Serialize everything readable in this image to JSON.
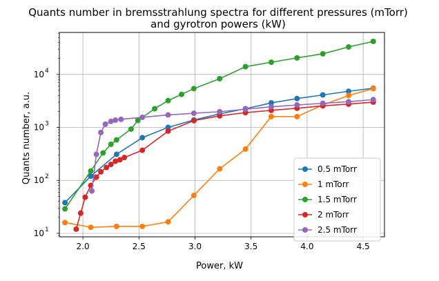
{
  "chart_data": {
    "type": "line",
    "title": [
      "Quants number in bremsstrahlung spectra for different pressures (mTorr)",
      "and gyrotron powers (kW)"
    ],
    "xlabel": "Power, kW",
    "ylabel": "Quants number, a.u.",
    "xlim": [
      1.79,
      4.69
    ],
    "ylim": [
      8.6,
      62000
    ],
    "yscale": "log",
    "grid": true,
    "legend_position": "lower-right",
    "x_ticks": [
      {
        "value": 2.0,
        "label": "2.0"
      },
      {
        "value": 2.5,
        "label": "2.5"
      },
      {
        "value": 3.0,
        "label": "3.0"
      },
      {
        "value": 3.5,
        "label": "3.5"
      },
      {
        "value": 4.0,
        "label": "4.0"
      },
      {
        "value": 4.5,
        "label": "4.5"
      }
    ],
    "y_ticks": [
      {
        "value": 10,
        "base": "10",
        "exp": "1"
      },
      {
        "value": 100,
        "base": "10",
        "exp": "2"
      },
      {
        "value": 1000,
        "base": "10",
        "exp": "3"
      },
      {
        "value": 10000,
        "base": "10",
        "exp": "4"
      }
    ],
    "series": [
      {
        "name": "0.5 mTorr",
        "color": "#1f77b4",
        "points": [
          [
            1.84,
            38
          ],
          [
            2.07,
            120
          ],
          [
            2.3,
            310
          ],
          [
            2.53,
            640
          ],
          [
            2.76,
            1000
          ],
          [
            2.99,
            1380
          ],
          [
            3.22,
            1800
          ],
          [
            3.45,
            2250
          ],
          [
            3.68,
            2900
          ],
          [
            3.91,
            3500
          ],
          [
            4.14,
            4100
          ],
          [
            4.37,
            4800
          ],
          [
            4.59,
            5500
          ]
        ]
      },
      {
        "name": "1 mTorr",
        "color": "#ff7f0e",
        "points": [
          [
            1.84,
            16
          ],
          [
            2.07,
            13
          ],
          [
            2.3,
            13.5
          ],
          [
            2.53,
            13.5
          ],
          [
            2.76,
            16.5
          ],
          [
            2.99,
            52
          ],
          [
            3.22,
            165
          ],
          [
            3.45,
            390
          ],
          [
            3.68,
            1600
          ],
          [
            3.91,
            1600
          ],
          [
            4.14,
            2650
          ],
          [
            4.37,
            4000
          ],
          [
            4.59,
            5400
          ]
        ]
      },
      {
        "name": "1.5 mTorr",
        "color": "#2ca02c",
        "points": [
          [
            1.84,
            29
          ],
          [
            2.07,
            150
          ],
          [
            2.18,
            330
          ],
          [
            2.25,
            480
          ],
          [
            2.3,
            580
          ],
          [
            2.43,
            930
          ],
          [
            2.49,
            1350
          ],
          [
            2.64,
            2250
          ],
          [
            2.76,
            3200
          ],
          [
            2.88,
            4200
          ],
          [
            2.99,
            5400
          ],
          [
            3.22,
            8300
          ],
          [
            3.45,
            14000
          ],
          [
            3.68,
            17000
          ],
          [
            3.91,
            20500
          ],
          [
            4.14,
            24500
          ],
          [
            4.37,
            33000
          ],
          [
            4.59,
            42000
          ]
        ]
      },
      {
        "name": "2 mTorr",
        "color": "#d62728",
        "points": [
          [
            1.94,
            12
          ],
          [
            1.98,
            24
          ],
          [
            2.02,
            48
          ],
          [
            2.07,
            80
          ],
          [
            2.12,
            115
          ],
          [
            2.16,
            145
          ],
          [
            2.21,
            175
          ],
          [
            2.25,
            200
          ],
          [
            2.29,
            230
          ],
          [
            2.33,
            245
          ],
          [
            2.37,
            270
          ],
          [
            2.53,
            370
          ],
          [
            2.76,
            850
          ],
          [
            2.99,
            1340
          ],
          [
            3.22,
            1650
          ],
          [
            3.45,
            1900
          ],
          [
            3.68,
            2100
          ],
          [
            3.91,
            2300
          ],
          [
            4.14,
            2550
          ],
          [
            4.37,
            2750
          ],
          [
            4.59,
            3000
          ]
        ]
      },
      {
        "name": "2.5 mTorr",
        "color": "#9467bd",
        "points": [
          [
            2.08,
            63
          ],
          [
            2.12,
            310
          ],
          [
            2.16,
            800
          ],
          [
            2.2,
            1150
          ],
          [
            2.25,
            1300
          ],
          [
            2.29,
            1370
          ],
          [
            2.34,
            1420
          ],
          [
            2.53,
            1550
          ],
          [
            2.76,
            1720
          ],
          [
            2.99,
            1850
          ],
          [
            3.22,
            1980
          ],
          [
            3.45,
            2200
          ],
          [
            3.68,
            2450
          ],
          [
            3.91,
            2650
          ],
          [
            4.14,
            2850
          ],
          [
            4.37,
            3050
          ],
          [
            4.59,
            3350
          ]
        ]
      }
    ]
  }
}
